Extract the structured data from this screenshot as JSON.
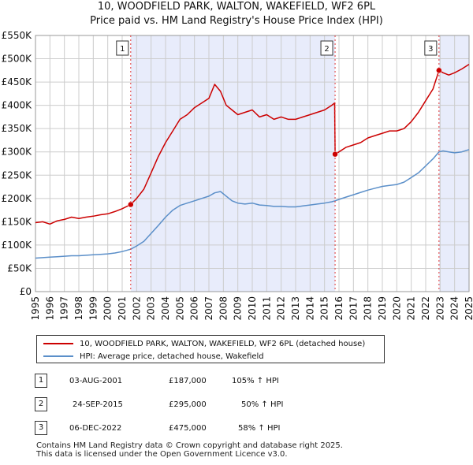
{
  "title_line1": "10, WOODFIELD PARK, WALTON, WAKEFIELD, WF2 6PL",
  "title_line2": "Price paid vs. HM Land Registry's House Price Index (HPI)",
  "chart_data": {
    "type": "line",
    "xlim": [
      1995,
      2025
    ],
    "ylim": [
      0,
      550000
    ],
    "x_ticks": [
      1995,
      1996,
      1997,
      1998,
      1999,
      2000,
      2001,
      2002,
      2003,
      2004,
      2005,
      2006,
      2007,
      2008,
      2009,
      2010,
      2011,
      2012,
      2013,
      2014,
      2015,
      2016,
      2017,
      2018,
      2019,
      2020,
      2021,
      2022,
      2023,
      2024,
      2025
    ],
    "y_ticks": [
      {
        "value": 0,
        "label": "£0"
      },
      {
        "value": 50000,
        "label": "£50K"
      },
      {
        "value": 100000,
        "label": "£100K"
      },
      {
        "value": 150000,
        "label": "£150K"
      },
      {
        "value": 200000,
        "label": "£200K"
      },
      {
        "value": 250000,
        "label": "£250K"
      },
      {
        "value": 300000,
        "label": "£300K"
      },
      {
        "value": 350000,
        "label": "£350K"
      },
      {
        "value": 400000,
        "label": "£400K"
      },
      {
        "value": 450000,
        "label": "£450K"
      },
      {
        "value": 500000,
        "label": "£500K"
      },
      {
        "value": 550000,
        "label": "£550K"
      }
    ],
    "grid": true,
    "shaded_ranges": [
      [
        2001.6,
        2015.73
      ],
      [
        2022.93,
        2025
      ]
    ],
    "series": [
      {
        "name": "10, WOODFIELD PARK, WALTON, WAKEFIELD, WF2 6PL (detached house)",
        "color": "#cc0000",
        "x": [
          1995.0,
          1995.5,
          1996.0,
          1996.5,
          1997.0,
          1997.5,
          1998.0,
          1998.5,
          1999.0,
          1999.5,
          2000.0,
          2000.5,
          2001.0,
          2001.59,
          2002.0,
          2002.5,
          2003.0,
          2003.5,
          2004.0,
          2004.5,
          2005.0,
          2005.5,
          2006.0,
          2006.5,
          2007.0,
          2007.4,
          2007.8,
          2008.2,
          2008.6,
          2009.0,
          2009.5,
          2010.0,
          2010.5,
          2011.0,
          2011.5,
          2012.0,
          2012.5,
          2013.0,
          2013.5,
          2014.0,
          2014.5,
          2015.0,
          2015.5,
          2015.7,
          2015.73,
          2016.0,
          2016.5,
          2017.0,
          2017.5,
          2018.0,
          2018.5,
          2019.0,
          2019.5,
          2020.0,
          2020.5,
          2021.0,
          2021.5,
          2022.0,
          2022.5,
          2022.92,
          2023.2,
          2023.6,
          2024.0,
          2024.5,
          2025.0
        ],
        "y": [
          148000,
          150000,
          145000,
          152000,
          155000,
          160000,
          157000,
          160000,
          162000,
          165000,
          167000,
          172000,
          178000,
          187000,
          200000,
          220000,
          255000,
          290000,
          320000,
          345000,
          370000,
          380000,
          395000,
          405000,
          415000,
          445000,
          430000,
          400000,
          390000,
          380000,
          385000,
          390000,
          375000,
          380000,
          370000,
          375000,
          370000,
          370000,
          375000,
          380000,
          385000,
          390000,
          400000,
          405000,
          295000,
          300000,
          310000,
          315000,
          320000,
          330000,
          335000,
          340000,
          345000,
          345000,
          350000,
          365000,
          385000,
          410000,
          435000,
          475000,
          470000,
          465000,
          470000,
          478000,
          488000
        ]
      },
      {
        "name": "HPI: Average price, detached house, Wakefield",
        "color": "#5b8fc9",
        "x": [
          1995.0,
          1995.5,
          1996.0,
          1996.5,
          1997.0,
          1997.5,
          1998.0,
          1998.5,
          1999.0,
          1999.5,
          2000.0,
          2000.5,
          2001.0,
          2001.59,
          2002.0,
          2002.5,
          2003.0,
          2003.5,
          2004.0,
          2004.5,
          2005.0,
          2005.5,
          2006.0,
          2006.5,
          2007.0,
          2007.4,
          2007.8,
          2008.2,
          2008.6,
          2009.0,
          2009.5,
          2010.0,
          2010.5,
          2011.0,
          2011.5,
          2012.0,
          2012.5,
          2013.0,
          2013.5,
          2014.0,
          2014.5,
          2015.0,
          2015.5,
          2015.73,
          2016.0,
          2016.5,
          2017.0,
          2017.5,
          2018.0,
          2018.5,
          2019.0,
          2019.5,
          2020.0,
          2020.5,
          2021.0,
          2021.5,
          2022.0,
          2022.5,
          2022.92,
          2023.2,
          2023.6,
          2024.0,
          2024.5,
          2025.0
        ],
        "y": [
          72000,
          73000,
          74000,
          75000,
          76000,
          77000,
          77000,
          78000,
          79000,
          80000,
          81000,
          83000,
          86000,
          91000,
          98000,
          108000,
          125000,
          142000,
          160000,
          175000,
          185000,
          190000,
          195000,
          200000,
          205000,
          212000,
          215000,
          205000,
          195000,
          190000,
          188000,
          190000,
          186000,
          185000,
          183000,
          183000,
          182000,
          182000,
          184000,
          186000,
          188000,
          190000,
          193000,
          195000,
          198000,
          203000,
          208000,
          213000,
          218000,
          222000,
          226000,
          228000,
          230000,
          235000,
          245000,
          255000,
          270000,
          285000,
          300000,
          302000,
          300000,
          298000,
          300000,
          305000
        ]
      }
    ],
    "sales": [
      {
        "num": "1",
        "x": 2001.59,
        "y": 187000
      },
      {
        "num": "2",
        "x": 2015.73,
        "y": 295000
      },
      {
        "num": "3",
        "x": 2022.92,
        "y": 475000
      }
    ]
  },
  "legend": {
    "property_label": "10, WOODFIELD PARK, WALTON, WAKEFIELD, WF2 6PL (detached house)",
    "hpi_label": "HPI: Average price, detached house, Wakefield",
    "property_color": "#cc0000",
    "hpi_color": "#5b8fc9"
  },
  "sales_table": [
    {
      "num": "1",
      "date": "03-AUG-2001",
      "price": "£187,000",
      "hpi": "105% ↑ HPI"
    },
    {
      "num": "2",
      "date": "24-SEP-2015",
      "price": "£295,000",
      "hpi": "50% ↑ HPI"
    },
    {
      "num": "3",
      "date": "06-DEC-2022",
      "price": "£475,000",
      "hpi": "58% ↑ HPI"
    }
  ],
  "footer_line1": "Contains HM Land Registry data © Crown copyright and database right 2025.",
  "footer_line2": "This data is licensed under the Open Government Licence v3.0."
}
